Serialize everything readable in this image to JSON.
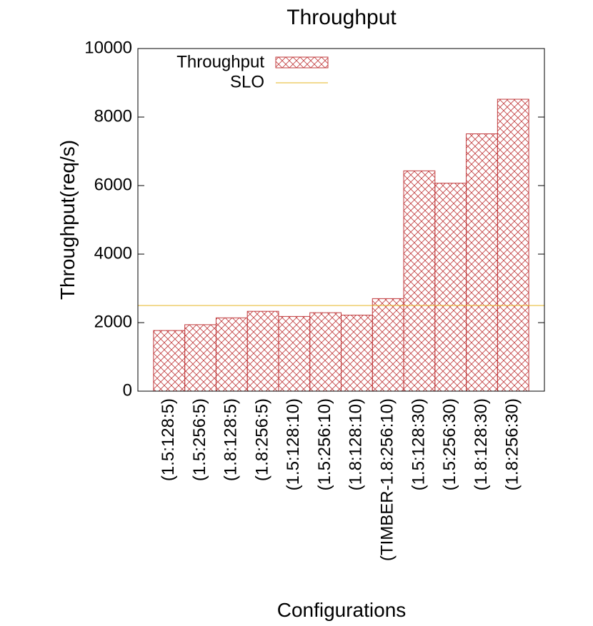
{
  "chart_data": {
    "type": "bar",
    "title": "Throughput",
    "x_label": "Configurations",
    "y_label": "Throughput(req/s)",
    "categories": [
      "(1.5:128:5)",
      "(1.5:256:5)",
      "(1.8:128:5)",
      "(1.8:256:5)",
      "(1.5:128:10)",
      "(1.5:256:10)",
      "(1.8:128:10)",
      "(TIMBER-1.8:256:10)",
      "(1.5:128:30)",
      "(1.5:256:30)",
      "(1.8:128:30)",
      "(1.8:256:30)"
    ],
    "series": [
      {
        "name": "Throughput",
        "color": "#c0393b",
        "values": [
          1770,
          1940,
          2140,
          2330,
          2180,
          2290,
          2220,
          2700,
          6430,
          6070,
          7510,
          8520
        ]
      }
    ],
    "slo": {
      "name": "SLO",
      "color": "#e6b422",
      "value": 2500
    },
    "ylim": [
      0,
      10000
    ],
    "yticks": [
      0,
      2000,
      4000,
      6000,
      8000,
      10000
    ]
  }
}
